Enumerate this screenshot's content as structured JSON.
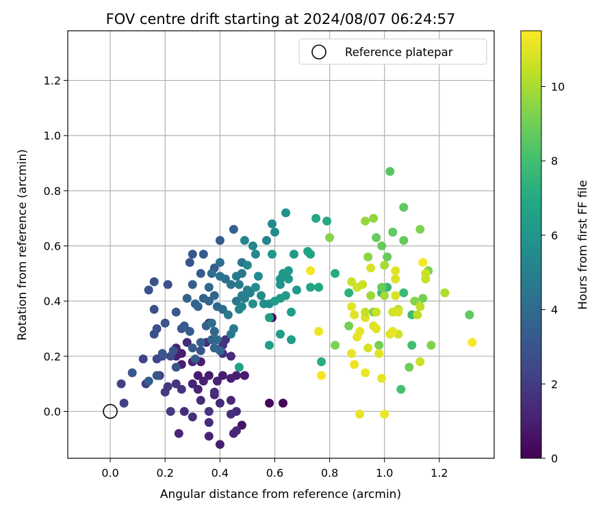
{
  "chart_data": {
    "type": "scatter",
    "title": "FOV centre drift starting at 2024/08/07 06:24:57",
    "xlabel": "Angular distance from reference (arcmin)",
    "ylabel": "Rotation from reference (arcmin)",
    "xlim": [
      -0.155,
      1.4
    ],
    "ylim": [
      -0.17,
      1.38
    ],
    "xticks": [
      "0.0",
      "0.2",
      "0.4",
      "0.6",
      "0.8",
      "1.0",
      "1.2"
    ],
    "xtick_values": [
      0.0,
      0.2,
      0.4,
      0.6,
      0.8,
      1.0,
      1.2
    ],
    "yticks": [
      "0.0",
      "0.2",
      "0.4",
      "0.6",
      "0.8",
      "1.0",
      "1.2"
    ],
    "ytick_values": [
      0.0,
      0.2,
      0.4,
      0.6,
      0.8,
      1.0,
      1.2
    ],
    "grid": true,
    "legend": {
      "placement": "top-right",
      "label": "Reference platepar"
    },
    "reference_point": [
      0.0,
      0.0
    ],
    "colorbar": {
      "label": "Hours from first FF file",
      "range": [
        0,
        11.5
      ],
      "ticks": [
        "0",
        "2",
        "4",
        "6",
        "8",
        "10"
      ],
      "tick_values": [
        0,
        2,
        4,
        6,
        8,
        10
      ],
      "colormap": "viridis"
    },
    "points": [
      [
        0.59,
        0.34,
        0.3
      ],
      [
        0.58,
        0.03,
        0.2
      ],
      [
        0.63,
        0.03,
        0.2
      ],
      [
        0.48,
        -0.05,
        0.6
      ],
      [
        0.4,
        -0.12,
        1.0
      ],
      [
        0.36,
        -0.09,
        1.1
      ],
      [
        0.25,
        -0.08,
        1.2
      ],
      [
        0.45,
        -0.08,
        1.3
      ],
      [
        0.46,
        -0.07,
        1.3
      ],
      [
        0.36,
        -0.04,
        1.4
      ],
      [
        0.3,
        -0.02,
        1.5
      ],
      [
        0.27,
        0.0,
        1.5
      ],
      [
        0.33,
        0.04,
        1.4
      ],
      [
        0.4,
        0.03,
        1.4
      ],
      [
        0.46,
        0.0,
        1.3
      ],
      [
        0.44,
        0.04,
        1.3
      ],
      [
        0.38,
        0.06,
        1.3
      ],
      [
        0.32,
        0.08,
        1.2
      ],
      [
        0.3,
        0.1,
        1.1
      ],
      [
        0.34,
        0.11,
        1.1
      ],
      [
        0.39,
        0.11,
        1.1
      ],
      [
        0.41,
        0.13,
        1.0
      ],
      [
        0.44,
        0.12,
        1.0
      ],
      [
        0.46,
        0.13,
        1.0
      ],
      [
        0.49,
        0.13,
        0.9
      ],
      [
        0.36,
        0.13,
        0.9
      ],
      [
        0.32,
        0.13,
        0.9
      ],
      [
        0.26,
        0.17,
        1.0
      ],
      [
        0.33,
        0.18,
        1.0
      ],
      [
        0.3,
        0.18,
        1.1
      ],
      [
        0.26,
        0.21,
        0.9
      ],
      [
        0.24,
        0.2,
        1.0
      ],
      [
        0.24,
        0.23,
        1.2
      ],
      [
        0.28,
        0.25,
        1.4
      ],
      [
        0.35,
        0.25,
        1.5
      ],
      [
        0.38,
        0.23,
        1.6
      ],
      [
        0.41,
        0.21,
        1.6
      ],
      [
        0.44,
        0.2,
        1.5
      ],
      [
        0.42,
        0.26,
        1.7
      ],
      [
        0.38,
        0.29,
        1.8
      ],
      [
        0.36,
        0.32,
        1.9
      ],
      [
        0.41,
        0.24,
        1.7
      ],
      [
        0.38,
        0.07,
        1.5
      ],
      [
        0.44,
        -0.01,
        1.5
      ],
      [
        0.36,
        0.0,
        1.7
      ],
      [
        0.26,
        0.08,
        1.8
      ],
      [
        0.24,
        0.1,
        1.8
      ],
      [
        0.2,
        0.07,
        1.9
      ],
      [
        0.21,
        0.09,
        1.9
      ],
      [
        0.18,
        0.13,
        2.0
      ],
      [
        0.22,
        0.0,
        2.0
      ],
      [
        0.13,
        0.1,
        2.1
      ],
      [
        0.04,
        0.1,
        2.2
      ],
      [
        0.05,
        0.03,
        2.2
      ],
      [
        0.12,
        0.19,
        2.3
      ],
      [
        0.17,
        0.19,
        2.4
      ],
      [
        0.19,
        0.2,
        2.6
      ],
      [
        0.22,
        0.2,
        2.7
      ],
      [
        0.16,
        0.28,
        2.8
      ],
      [
        0.2,
        0.32,
        2.9
      ],
      [
        0.23,
        0.22,
        3.0
      ],
      [
        0.24,
        0.16,
        3.0
      ],
      [
        0.33,
        0.22,
        3.0
      ],
      [
        0.17,
        0.3,
        2.8
      ],
      [
        0.14,
        0.11,
        3.4
      ],
      [
        0.08,
        0.14,
        3.2
      ],
      [
        0.17,
        0.13,
        3.1
      ],
      [
        0.19,
        0.21,
        3.1
      ],
      [
        0.14,
        0.44,
        2.9
      ],
      [
        0.16,
        0.47,
        2.9
      ],
      [
        0.21,
        0.46,
        2.8
      ],
      [
        0.16,
        0.37,
        2.9
      ],
      [
        0.24,
        0.36,
        3.1
      ],
      [
        0.26,
        0.3,
        3.2
      ],
      [
        0.27,
        0.31,
        3.3
      ],
      [
        0.29,
        0.29,
        3.3
      ],
      [
        0.3,
        0.23,
        3.3
      ],
      [
        0.31,
        0.19,
        3.4
      ],
      [
        0.33,
        0.25,
        3.5
      ],
      [
        0.35,
        0.31,
        3.6
      ],
      [
        0.37,
        0.26,
        3.7
      ],
      [
        0.38,
        0.23,
        3.8
      ],
      [
        0.4,
        0.22,
        3.8
      ],
      [
        0.39,
        0.26,
        3.9
      ],
      [
        0.38,
        0.29,
        3.8
      ],
      [
        0.37,
        0.32,
        4.1
      ],
      [
        0.29,
        0.54,
        3.0
      ],
      [
        0.3,
        0.57,
        3.1
      ],
      [
        0.34,
        0.57,
        3.2
      ],
      [
        0.4,
        0.62,
        3.2
      ],
      [
        0.38,
        0.52,
        3.3
      ],
      [
        0.33,
        0.5,
        3.3
      ],
      [
        0.3,
        0.46,
        3.4
      ],
      [
        0.28,
        0.41,
        3.6
      ],
      [
        0.31,
        0.39,
        3.6
      ],
      [
        0.32,
        0.38,
        3.7
      ],
      [
        0.34,
        0.41,
        3.7
      ],
      [
        0.36,
        0.4,
        3.7
      ],
      [
        0.38,
        0.42,
        3.8
      ],
      [
        0.39,
        0.38,
        3.8
      ],
      [
        0.41,
        0.37,
        3.9
      ],
      [
        0.36,
        0.45,
        4.0
      ],
      [
        0.37,
        0.5,
        4.1
      ],
      [
        0.4,
        0.54,
        4.2
      ],
      [
        0.42,
        0.48,
        4.3
      ],
      [
        0.4,
        0.49,
        4.4
      ],
      [
        0.44,
        0.46,
        4.5
      ],
      [
        0.46,
        0.4,
        4.5
      ],
      [
        0.43,
        0.35,
        4.6
      ],
      [
        0.45,
        0.3,
        4.6
      ],
      [
        0.44,
        0.28,
        4.6
      ],
      [
        0.45,
        0.66,
        3.6
      ],
      [
        0.48,
        0.54,
        4.5
      ],
      [
        0.48,
        0.5,
        4.6
      ],
      [
        0.46,
        0.49,
        4.7
      ],
      [
        0.47,
        0.46,
        4.8
      ],
      [
        0.48,
        0.42,
        4.9
      ],
      [
        0.49,
        0.41,
        4.9
      ],
      [
        0.5,
        0.44,
        4.9
      ],
      [
        0.51,
        0.43,
        5.0
      ],
      [
        0.47,
        0.37,
        5.1
      ],
      [
        0.48,
        0.38,
        5.2
      ],
      [
        0.49,
        0.62,
        5.1
      ],
      [
        0.5,
        0.53,
        5.3
      ],
      [
        0.52,
        0.6,
        5.3
      ],
      [
        0.53,
        0.57,
        5.4
      ],
      [
        0.54,
        0.49,
        5.4
      ],
      [
        0.53,
        0.45,
        5.5
      ],
      [
        0.55,
        0.42,
        5.5
      ],
      [
        0.56,
        0.39,
        5.6
      ],
      [
        0.52,
        0.39,
        5.6
      ],
      [
        0.58,
        0.39,
        5.6
      ],
      [
        0.57,
        0.62,
        5.2
      ],
      [
        0.59,
        0.68,
        5.4
      ],
      [
        0.6,
        0.65,
        5.5
      ],
      [
        0.64,
        0.72,
        5.8
      ],
      [
        0.62,
        0.46,
        5.9
      ],
      [
        0.62,
        0.48,
        5.9
      ],
      [
        0.63,
        0.5,
        6.0
      ],
      [
        0.65,
        0.51,
        6.0
      ],
      [
        0.62,
        0.41,
        6.1
      ],
      [
        0.6,
        0.4,
        6.2
      ],
      [
        0.59,
        0.57,
        6.1
      ],
      [
        0.67,
        0.57,
        6.1
      ],
      [
        0.68,
        0.44,
        6.2
      ],
      [
        0.65,
        0.48,
        6.2
      ],
      [
        0.64,
        0.42,
        6.3
      ],
      [
        0.66,
        0.36,
        6.3
      ],
      [
        0.58,
        0.34,
        6.4
      ],
      [
        0.62,
        0.28,
        6.4
      ],
      [
        0.66,
        0.26,
        6.4
      ],
      [
        0.58,
        0.24,
        6.5
      ],
      [
        0.47,
        0.16,
        6.6
      ],
      [
        0.72,
        0.58,
        6.6
      ],
      [
        0.73,
        0.57,
        6.6
      ],
      [
        0.73,
        0.45,
        6.7
      ],
      [
        0.76,
        0.45,
        6.7
      ],
      [
        0.75,
        0.7,
        6.8
      ],
      [
        0.79,
        0.69,
        7.0
      ],
      [
        0.82,
        0.5,
        7.0
      ],
      [
        0.77,
        0.18,
        7.1
      ],
      [
        0.87,
        0.43,
        7.3
      ],
      [
        0.99,
        0.43,
        7.4
      ],
      [
        1.01,
        0.45,
        7.6
      ],
      [
        1.07,
        0.43,
        7.8
      ],
      [
        1.1,
        0.35,
        7.9
      ],
      [
        1.1,
        0.24,
        8.0
      ],
      [
        1.06,
        0.08,
        8.1
      ],
      [
        1.02,
        0.87,
        8.5
      ],
      [
        1.03,
        0.65,
        8.6
      ],
      [
        1.07,
        0.74,
        8.6
      ],
      [
        1.07,
        0.62,
        8.7
      ],
      [
        1.01,
        0.56,
        8.8
      ],
      [
        0.99,
        0.6,
        8.8
      ],
      [
        0.99,
        0.45,
        8.9
      ],
      [
        0.97,
        0.63,
        8.8
      ],
      [
        0.96,
        0.36,
        9.0
      ],
      [
        0.98,
        0.24,
        9.1
      ],
      [
        1.09,
        0.16,
        9.0
      ],
      [
        1.14,
        0.41,
        9.1
      ],
      [
        1.16,
        0.51,
        9.2
      ],
      [
        1.13,
        0.66,
        9.3
      ],
      [
        1.11,
        0.4,
        9.4
      ],
      [
        1.17,
        0.24,
        9.3
      ],
      [
        0.8,
        0.63,
        9.4
      ],
      [
        0.87,
        0.31,
        9.0
      ],
      [
        0.82,
        0.24,
        9.2
      ],
      [
        0.94,
        0.56,
        9.5
      ],
      [
        0.96,
        0.7,
        9.6
      ],
      [
        0.93,
        0.69,
        9.7
      ],
      [
        0.95,
        0.42,
        9.8
      ],
      [
        1.0,
        0.42,
        9.9
      ],
      [
        1.0,
        0.53,
        10.0
      ],
      [
        1.31,
        0.35,
        8.6
      ],
      [
        1.22,
        0.43,
        10.1
      ],
      [
        1.05,
        0.37,
        10.3
      ],
      [
        1.12,
        0.35,
        10.3
      ],
      [
        1.13,
        0.38,
        10.4
      ],
      [
        1.15,
        0.48,
        10.5
      ],
      [
        1.15,
        0.5,
        10.6
      ],
      [
        1.13,
        0.18,
        10.6
      ],
      [
        1.05,
        0.28,
        10.7
      ],
      [
        1.03,
        0.36,
        10.7
      ],
      [
        1.04,
        0.42,
        10.8
      ],
      [
        1.04,
        0.48,
        10.9
      ],
      [
        1.04,
        0.51,
        10.9
      ],
      [
        1.05,
        0.36,
        10.8
      ],
      [
        0.93,
        0.34,
        10.9
      ],
      [
        0.94,
        0.23,
        10.8
      ],
      [
        0.96,
        0.31,
        10.9
      ],
      [
        0.97,
        0.3,
        11.0
      ],
      [
        0.98,
        0.21,
        11.0
      ],
      [
        0.99,
        0.12,
        11.1
      ],
      [
        1.02,
        0.28,
        11.0
      ],
      [
        1.03,
        0.29,
        11.1
      ],
      [
        0.88,
        0.38,
        11.0
      ],
      [
        0.89,
        0.35,
        11.0
      ],
      [
        0.9,
        0.27,
        11.1
      ],
      [
        0.91,
        0.29,
        11.1
      ],
      [
        0.88,
        0.21,
        11.1
      ],
      [
        0.89,
        0.17,
        11.2
      ],
      [
        0.93,
        0.14,
        11.2
      ],
      [
        0.9,
        0.45,
        10.6
      ],
      [
        0.92,
        0.46,
        10.6
      ],
      [
        0.95,
        0.52,
        10.8
      ],
      [
        0.91,
        -0.01,
        11.1
      ],
      [
        1.0,
        -0.01,
        11.2
      ],
      [
        0.76,
        0.29,
        11.2
      ],
      [
        0.77,
        0.13,
        11.3
      ],
      [
        0.73,
        0.51,
        11.3
      ],
      [
        1.32,
        0.25,
        11.4
      ],
      [
        0.93,
        0.36,
        10.5
      ],
      [
        0.88,
        0.47,
        10.6
      ],
      [
        1.14,
        0.54,
        11.4
      ],
      [
        0.97,
        0.36,
        10.6
      ]
    ]
  }
}
